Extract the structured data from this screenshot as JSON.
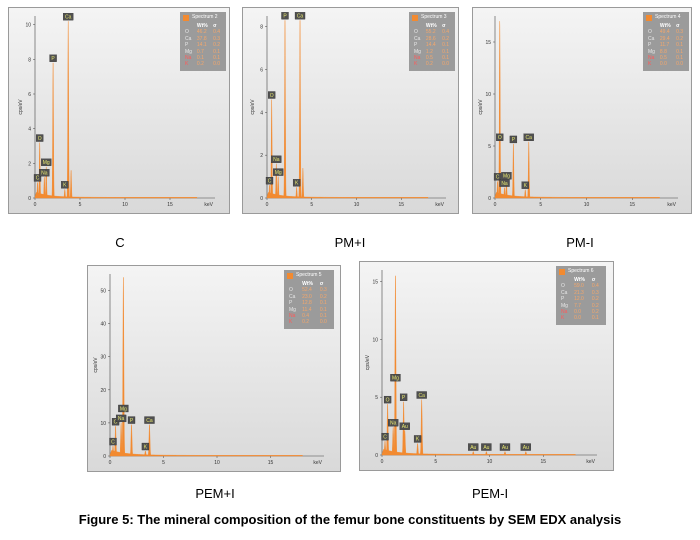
{
  "figure": {
    "title": "Figure 5: The mineral composition of the femur bone constituents by SEM EDX analysis",
    "legend_header": [
      "Wt%",
      "σ"
    ]
  },
  "colors": {
    "spectrum": "#f28a30",
    "label_box": "#505050",
    "label_text": "#e8e870",
    "legend_bg": "#9b9b9b"
  },
  "chart_data": [
    {
      "type": "area",
      "caption": "C",
      "legend_title": "Spectrum 2",
      "ylabel": "cps/eV",
      "xlabel": "keV",
      "xlim": [
        0,
        20
      ],
      "ylim": [
        0,
        10.5
      ],
      "xticks": [
        "0",
        "5",
        "10",
        "15"
      ],
      "yticks": [
        "0",
        "2",
        "4",
        "6",
        "8",
        "10"
      ],
      "peaks": [
        {
          "label": "C",
          "energy": 0.28,
          "height": 0.9
        },
        {
          "label": "O",
          "energy": 0.52,
          "height": 3.2
        },
        {
          "label": "Na",
          "energy": 1.04,
          "height": 1.2
        },
        {
          "label": "Mg",
          "energy": 1.25,
          "height": 1.8
        },
        {
          "label": "P",
          "energy": 2.01,
          "height": 7.8
        },
        {
          "label": "K",
          "energy": 3.31,
          "height": 0.5
        },
        {
          "label": "Ca",
          "energy": 3.69,
          "height": 10.2
        }
      ],
      "extra_peaks": [
        {
          "energy": 4.01,
          "height": 1.6
        }
      ],
      "composition": [
        {
          "element": "O",
          "wt": "46.2",
          "sigma": "0.4"
        },
        {
          "element": "Ca",
          "wt": "37.8",
          "sigma": "0.3"
        },
        {
          "element": "P",
          "wt": "14.1",
          "sigma": "0.2"
        },
        {
          "element": "Mg",
          "wt": "0.7",
          "sigma": "0.1"
        },
        {
          "element": "Na",
          "wt": "0.1",
          "sigma": "0.1"
        },
        {
          "element": "K",
          "wt": "0.2",
          "sigma": "0.0"
        }
      ]
    },
    {
      "type": "area",
      "caption": "PM+I",
      "legend_title": "Spectrum 3",
      "ylabel": "cps/eV",
      "xlabel": "keV",
      "xlim": [
        0,
        20
      ],
      "ylim": [
        0,
        8.5
      ],
      "xticks": [
        "0",
        "5",
        "10",
        "15"
      ],
      "yticks": [
        "0",
        "2",
        "4",
        "6",
        "8"
      ],
      "peaks": [
        {
          "label": "C",
          "energy": 0.28,
          "height": 0.6
        },
        {
          "label": "O",
          "energy": 0.52,
          "height": 4.6
        },
        {
          "label": "Na",
          "energy": 1.04,
          "height": 1.6
        },
        {
          "label": "Mg",
          "energy": 1.25,
          "height": 1.0
        },
        {
          "label": "P",
          "energy": 2.01,
          "height": 8.3
        },
        {
          "label": "K",
          "energy": 3.31,
          "height": 0.5
        },
        {
          "label": "Ca",
          "energy": 3.69,
          "height": 8.3
        }
      ],
      "extra_peaks": [
        {
          "energy": 4.01,
          "height": 1.4
        }
      ],
      "composition": [
        {
          "element": "O",
          "wt": "55.2",
          "sigma": "0.4"
        },
        {
          "element": "Ca",
          "wt": "28.6",
          "sigma": "0.2"
        },
        {
          "element": "P",
          "wt": "14.4",
          "sigma": "0.1"
        },
        {
          "element": "Mg",
          "wt": "1.2",
          "sigma": "0.1"
        },
        {
          "element": "Na",
          "wt": "0.5",
          "sigma": "0.1"
        },
        {
          "element": "K",
          "wt": "0.2",
          "sigma": "0.0"
        }
      ]
    },
    {
      "type": "area",
      "caption": "PM-I",
      "legend_title": "Spectrum 4",
      "ylabel": "cps/eV",
      "xlabel": "keV",
      "xlim": [
        0,
        20
      ],
      "ylim": [
        0,
        17.5
      ],
      "xticks": [
        "0",
        "5",
        "10",
        "15"
      ],
      "yticks": [
        "0",
        "5",
        "10",
        "15"
      ],
      "peaks": [
        {
          "label": "C",
          "energy": 0.28,
          "height": 1.6
        },
        {
          "label": "O",
          "energy": 0.52,
          "height": 5.4
        },
        {
          "label": "Na",
          "energy": 1.04,
          "height": 1.0
        },
        {
          "label": "Mg",
          "energy": 1.25,
          "height": 1.7
        },
        {
          "label": "P",
          "energy": 2.01,
          "height": 5.2
        },
        {
          "label": "K",
          "energy": 3.31,
          "height": 0.8
        },
        {
          "label": "Ca",
          "energy": 3.69,
          "height": 5.4
        }
      ],
      "extra_peaks": [
        {
          "energy": 0.52,
          "height": 17.0
        }
      ],
      "composition": [
        {
          "element": "O",
          "wt": "49.4",
          "sigma": "0.3"
        },
        {
          "element": "Ca",
          "wt": "29.4",
          "sigma": "0.2"
        },
        {
          "element": "P",
          "wt": "11.7",
          "sigma": "0.1"
        },
        {
          "element": "Mg",
          "wt": "8.8",
          "sigma": "0.1"
        },
        {
          "element": "Na",
          "wt": "0.5",
          "sigma": "0.1"
        },
        {
          "element": "K",
          "wt": "0.0",
          "sigma": "0.0"
        }
      ]
    },
    {
      "type": "area",
      "caption": "PEM+I",
      "legend_title": "Spectrum 5",
      "ylabel": "cps/eV",
      "xlabel": "keV",
      "xlim": [
        0,
        20
      ],
      "ylim": [
        0,
        55
      ],
      "xticks": [
        "0",
        "5",
        "10",
        "15"
      ],
      "yticks": [
        "0",
        "10",
        "20",
        "30",
        "40",
        "50"
      ],
      "peaks": [
        {
          "label": "C",
          "energy": 0.28,
          "height": 3.0
        },
        {
          "label": "O",
          "energy": 0.52,
          "height": 9.0
        },
        {
          "label": "Na",
          "energy": 1.04,
          "height": 10.0
        },
        {
          "label": "Mg",
          "energy": 1.25,
          "height": 13.0
        },
        {
          "label": "P",
          "energy": 2.01,
          "height": 9.5
        },
        {
          "label": "K",
          "energy": 3.31,
          "height": 1.5
        },
        {
          "label": "Ca",
          "energy": 3.69,
          "height": 9.5
        }
      ],
      "extra_peaks": [
        {
          "energy": 1.25,
          "height": 54.0
        }
      ],
      "composition": [
        {
          "element": "O",
          "wt": "52.4",
          "sigma": "0.3"
        },
        {
          "element": "Ca",
          "wt": "23.0",
          "sigma": "0.2"
        },
        {
          "element": "P",
          "wt": "12.8",
          "sigma": "0.1"
        },
        {
          "element": "Mg",
          "wt": "11.4",
          "sigma": "0.1"
        },
        {
          "element": "Na",
          "wt": "0.4",
          "sigma": "0.1"
        },
        {
          "element": "K",
          "wt": "0.2",
          "sigma": "0.0"
        }
      ]
    },
    {
      "type": "area",
      "caption": "PEM-I",
      "legend_title": "Spectrum 6",
      "ylabel": "cps/eV",
      "xlabel": "keV",
      "xlim": [
        0,
        20
      ],
      "ylim": [
        0,
        16
      ],
      "xticks": [
        "0",
        "5",
        "10",
        "15"
      ],
      "yticks": [
        "0",
        "5",
        "10",
        "15"
      ],
      "peaks": [
        {
          "label": "C",
          "energy": 0.28,
          "height": 1.2
        },
        {
          "label": "O",
          "energy": 0.52,
          "height": 4.4
        },
        {
          "label": "Na",
          "energy": 1.04,
          "height": 2.4
        },
        {
          "label": "Mg",
          "energy": 1.25,
          "height": 6.3
        },
        {
          "label": "P",
          "energy": 2.01,
          "height": 4.6
        },
        {
          "label": "Au",
          "energy": 2.12,
          "height": 2.1
        },
        {
          "label": "K",
          "energy": 3.31,
          "height": 1.0
        },
        {
          "label": "Ca",
          "energy": 3.69,
          "height": 4.8
        },
        {
          "label": "Au",
          "energy": 8.49,
          "height": 0.3
        },
        {
          "label": "Au",
          "energy": 9.71,
          "height": 0.3
        },
        {
          "label": "Au",
          "energy": 11.44,
          "height": 0.3
        },
        {
          "label": "Au",
          "energy": 13.38,
          "height": 0.3
        }
      ],
      "extra_peaks": [
        {
          "energy": 1.25,
          "height": 15.5
        }
      ],
      "composition": [
        {
          "element": "O",
          "wt": "59.0",
          "sigma": "0.4"
        },
        {
          "element": "Ca",
          "wt": "21.3",
          "sigma": "0.3"
        },
        {
          "element": "P",
          "wt": "12.0",
          "sigma": "0.2"
        },
        {
          "element": "Mg",
          "wt": "7.7",
          "sigma": "0.2"
        },
        {
          "element": "Na",
          "wt": "0.0",
          "sigma": "0.2"
        },
        {
          "element": "K",
          "wt": "0.0",
          "sigma": "0.1"
        }
      ]
    }
  ]
}
